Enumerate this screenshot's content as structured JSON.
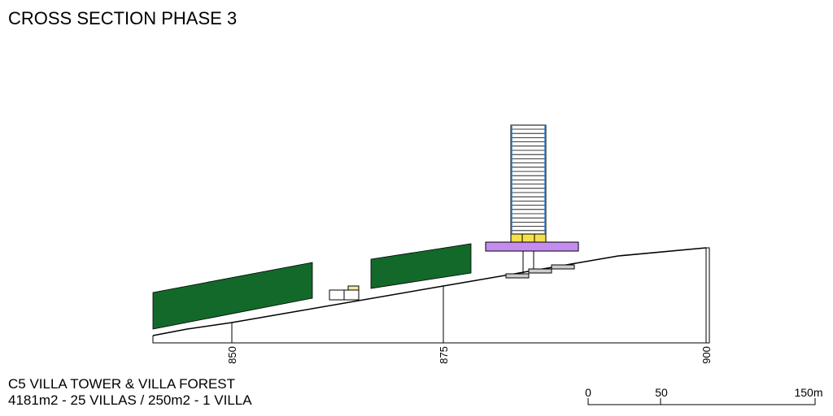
{
  "title": "CROSS SECTION PHASE 3",
  "elevations": [
    "850",
    "875",
    "900"
  ],
  "caption": {
    "line1": "C5 VILLA TOWER & VILLA FOREST",
    "line2": "4181m2 - 25 VILLAS / 250m2 - 1 VILLA"
  },
  "scale": [
    "0",
    "50",
    "150m"
  ]
}
